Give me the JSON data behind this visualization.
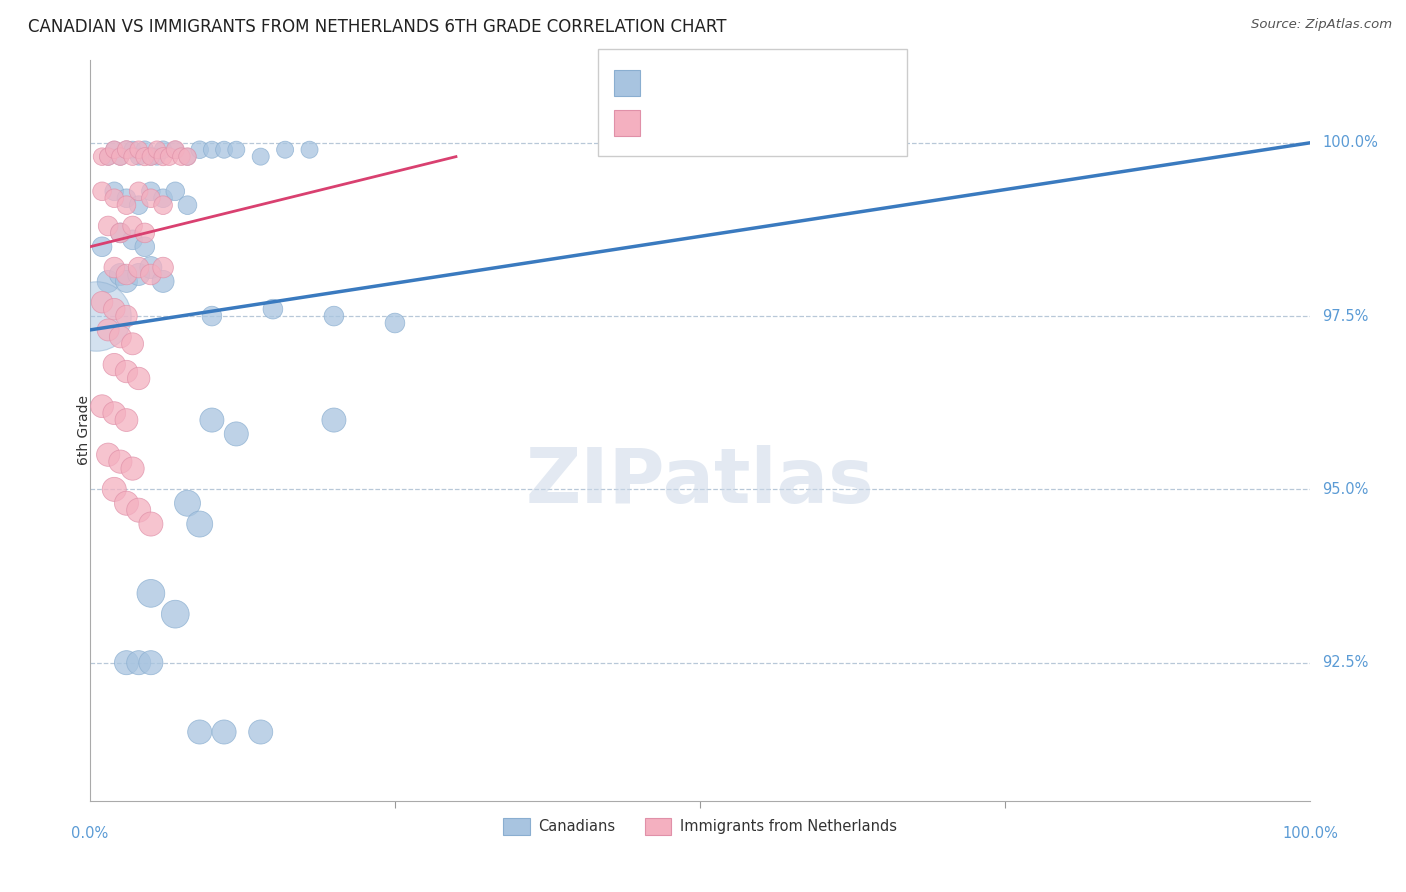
{
  "title": "CANADIAN VS IMMIGRANTS FROM NETHERLANDS 6TH GRADE CORRELATION CHART",
  "source": "Source: ZipAtlas.com",
  "ylabel": "6th Grade",
  "y_ticks": [
    100.0,
    97.5,
    95.0,
    92.5
  ],
  "y_tick_labels": [
    "100.0%",
    "97.5%",
    "95.0%",
    "92.5%"
  ],
  "x_range": [
    0.0,
    100.0
  ],
  "y_range": [
    90.5,
    101.2
  ],
  "canadian_color": "#a8c4e0",
  "netherlands_color": "#f4b0c0",
  "trend_canadian_color": "#3a7abf",
  "trend_netherlands_color": "#d94070",
  "canadian_scatter_x": [
    1.5,
    2.0,
    2.5,
    3.0,
    3.5,
    4.0,
    4.5,
    5.0,
    5.5,
    6.0,
    7.0,
    8.0,
    9.0,
    10.0,
    11.0,
    12.0,
    14.0,
    16.0,
    18.0,
    2.0,
    3.0,
    4.0,
    5.0,
    6.0,
    7.0,
    8.0,
    1.0,
    2.5,
    3.5,
    4.5,
    1.5,
    2.5,
    3.0,
    4.0,
    5.0,
    6.0,
    10.0,
    15.0,
    20.0,
    25.0,
    10.0,
    12.0,
    20.0,
    8.0,
    9.0,
    5.0,
    7.0,
    3.0,
    4.0,
    5.0,
    9.0,
    11.0,
    14.0
  ],
  "canadian_scatter_y": [
    99.8,
    99.9,
    99.8,
    99.9,
    99.9,
    99.8,
    99.9,
    99.8,
    99.8,
    99.9,
    99.9,
    99.8,
    99.9,
    99.9,
    99.9,
    99.9,
    99.8,
    99.9,
    99.9,
    99.3,
    99.2,
    99.1,
    99.3,
    99.2,
    99.3,
    99.1,
    98.5,
    98.7,
    98.6,
    98.5,
    98.0,
    98.1,
    98.0,
    98.1,
    98.2,
    98.0,
    97.5,
    97.6,
    97.5,
    97.4,
    96.0,
    95.8,
    96.0,
    94.8,
    94.5,
    93.5,
    93.2,
    92.5,
    92.5,
    92.5,
    91.5,
    91.5,
    91.5
  ],
  "canadian_scatter_sizes": [
    150,
    150,
    150,
    160,
    150,
    150,
    160,
    150,
    150,
    160,
    150,
    150,
    160,
    150,
    150,
    150,
    150,
    150,
    150,
    180,
    180,
    180,
    180,
    180,
    180,
    180,
    200,
    200,
    200,
    200,
    250,
    250,
    250,
    250,
    250,
    250,
    200,
    200,
    200,
    200,
    300,
    300,
    300,
    350,
    350,
    400,
    400,
    300,
    300,
    300,
    300,
    300,
    300
  ],
  "netherlands_scatter_x": [
    1.0,
    1.5,
    2.0,
    2.5,
    3.0,
    3.5,
    4.0,
    4.5,
    5.0,
    5.5,
    6.0,
    6.5,
    7.0,
    7.5,
    8.0,
    1.0,
    2.0,
    3.0,
    4.0,
    5.0,
    6.0,
    1.5,
    2.5,
    3.5,
    4.5,
    2.0,
    3.0,
    4.0,
    5.0,
    6.0,
    1.0,
    2.0,
    3.0,
    1.5,
    2.5,
    3.5,
    2.0,
    3.0,
    4.0,
    1.0,
    2.0,
    3.0,
    1.5,
    2.5,
    3.5,
    2.0,
    3.0,
    4.0,
    5.0
  ],
  "netherlands_scatter_y": [
    99.8,
    99.8,
    99.9,
    99.8,
    99.9,
    99.8,
    99.9,
    99.8,
    99.8,
    99.9,
    99.8,
    99.8,
    99.9,
    99.8,
    99.8,
    99.3,
    99.2,
    99.1,
    99.3,
    99.2,
    99.1,
    98.8,
    98.7,
    98.8,
    98.7,
    98.2,
    98.1,
    98.2,
    98.1,
    98.2,
    97.7,
    97.6,
    97.5,
    97.3,
    97.2,
    97.1,
    96.8,
    96.7,
    96.6,
    96.2,
    96.1,
    96.0,
    95.5,
    95.4,
    95.3,
    95.0,
    94.8,
    94.7,
    94.5
  ],
  "netherlands_scatter_sizes": [
    160,
    160,
    160,
    160,
    170,
    160,
    160,
    170,
    160,
    160,
    170,
    160,
    170,
    160,
    160,
    180,
    180,
    180,
    180,
    180,
    180,
    200,
    200,
    200,
    200,
    220,
    220,
    220,
    220,
    220,
    240,
    240,
    240,
    250,
    250,
    250,
    260,
    260,
    260,
    270,
    270,
    270,
    280,
    280,
    280,
    300,
    300,
    300,
    300
  ],
  "trend_ca_x0": 0.0,
  "trend_ca_y0": 97.3,
  "trend_ca_x1": 100.0,
  "trend_ca_y1": 100.0,
  "trend_nl_x0": 0.0,
  "trend_nl_y0": 98.5,
  "trend_nl_x1": 30.0,
  "trend_nl_y1": 99.8,
  "large_blue_x": 0.5,
  "large_blue_y": 97.5,
  "large_blue_size": 2500
}
